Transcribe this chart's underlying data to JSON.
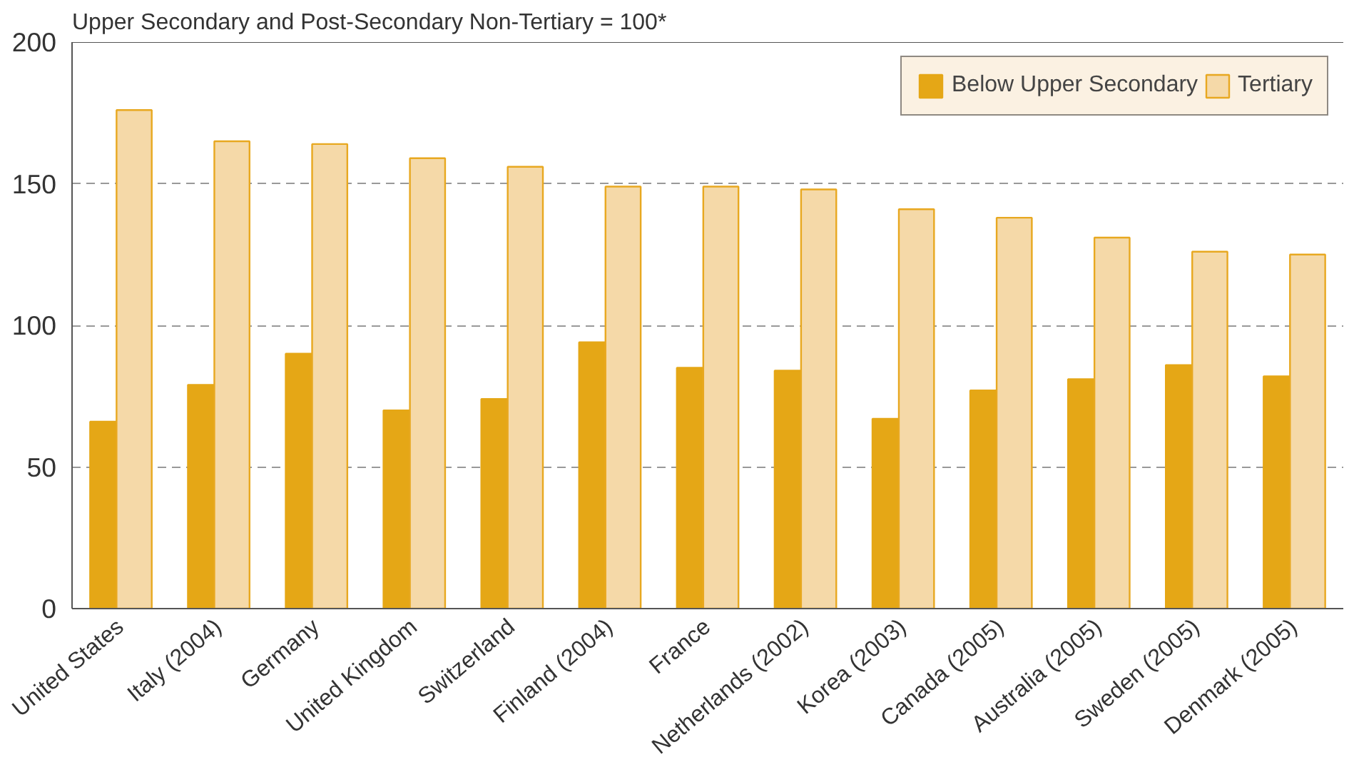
{
  "chart_data": {
    "type": "bar",
    "ylabel": "Upper Secondary and Post-Secondary Non-Tertiary = 100*",
    "categories": [
      "United States",
      "Italy (2004)",
      "Germany",
      "United Kingdom",
      "Switzerland",
      "Finland (2004)",
      "France",
      "Netherlands (2002)",
      "Korea (2003)",
      "Canada (2005)",
      "Australia (2005)",
      "Sweden (2005)",
      "Denmark (2005)"
    ],
    "series": [
      {
        "name": "Below Upper Secondary",
        "color": "#e5a716",
        "values": [
          66,
          79,
          90,
          70,
          74,
          94,
          85,
          84,
          67,
          77,
          81,
          86,
          82
        ]
      },
      {
        "name": "Tertiary",
        "color": "#f5d9a8",
        "values": [
          176,
          165,
          164,
          159,
          156,
          149,
          149,
          148,
          141,
          138,
          131,
          126,
          125
        ]
      }
    ],
    "ylim": [
      0,
      200
    ],
    "yticks": [
      0,
      50,
      100,
      150,
      200
    ],
    "grid": "y",
    "legend": "top right"
  }
}
